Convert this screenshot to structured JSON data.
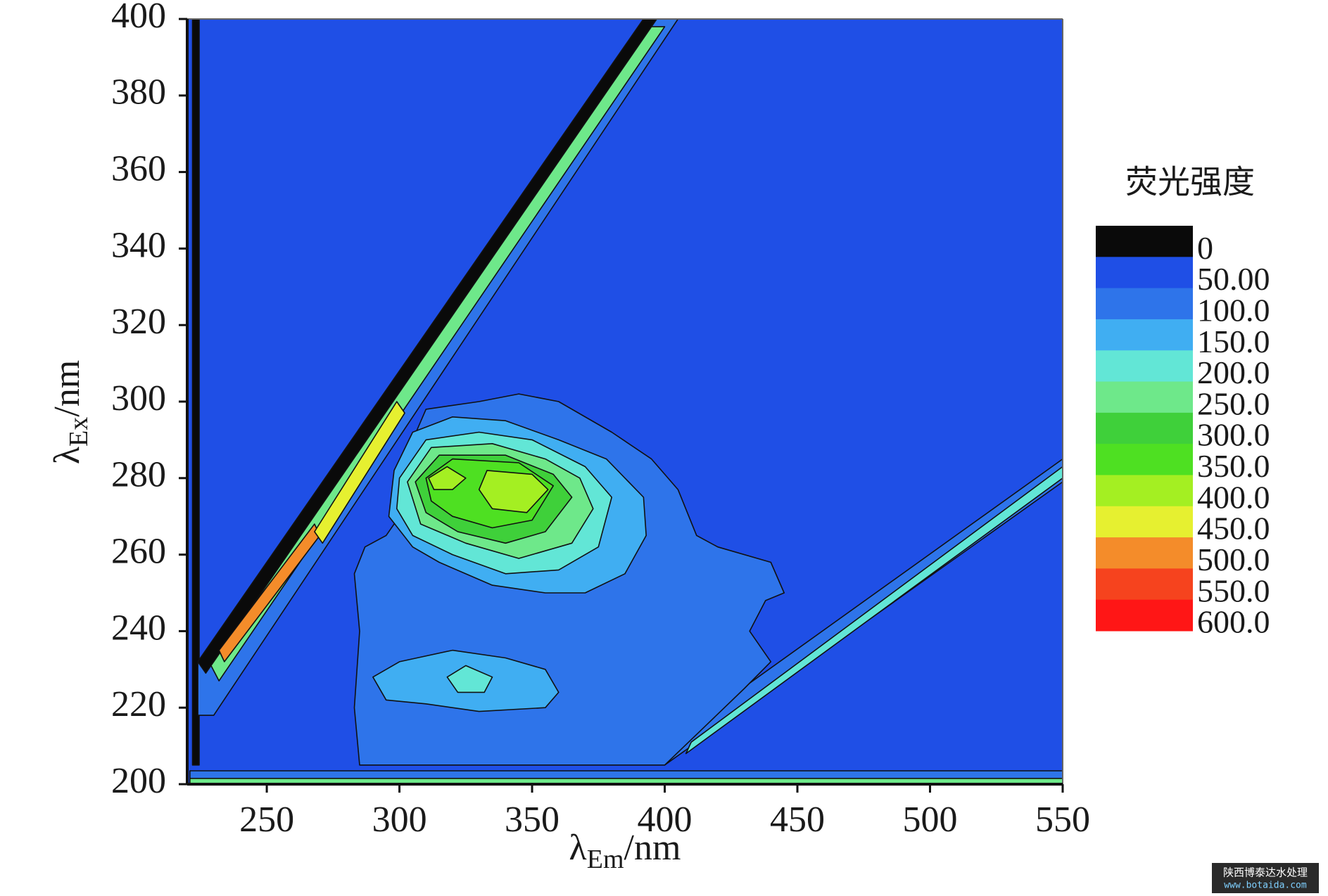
{
  "chart_data": {
    "type": "contour",
    "xlabel": [
      "λ",
      "Em",
      "/nm"
    ],
    "ylabel": [
      "λ",
      "Ex",
      "/nm"
    ],
    "xlim": [
      220,
      550
    ],
    "ylim": [
      200,
      400
    ],
    "xticks": [
      250,
      300,
      350,
      400,
      450,
      500,
      550
    ],
    "yticks": [
      200,
      220,
      240,
      260,
      280,
      300,
      320,
      340,
      360,
      380,
      400
    ],
    "colorbar": {
      "title": "荧光强度",
      "levels": [
        0,
        {
          "value": 50,
          "label": "50.00"
        },
        {
          "value": 100,
          "label": "100.0"
        },
        {
          "value": 150,
          "label": "150.0"
        },
        {
          "value": 200,
          "label": "200.0"
        },
        {
          "value": 250,
          "label": "250.0"
        },
        {
          "value": 300,
          "label": "300.0"
        },
        {
          "value": 350,
          "label": "350.0"
        },
        {
          "value": 400,
          "label": "400.0"
        },
        {
          "value": 450,
          "label": "450.0"
        },
        {
          "value": 500,
          "label": "500.0"
        },
        {
          "value": 550,
          "label": "550.0"
        },
        {
          "value": 600,
          "label": "600.0"
        }
      ],
      "colors": [
        "#0a0a0a",
        "#1f4fe6",
        "#2e74ea",
        "#40aef2",
        "#62e6d6",
        "#6ee88a",
        "#3fd03a",
        "#4ee022",
        "#a4ef22",
        "#e6f030",
        "#f48c2a",
        "#f6431e",
        "#ff1616"
      ]
    },
    "regions": [
      {
        "level": 50,
        "points": [
          [
            220,
            200
          ],
          [
            220,
            400
          ],
          [
            550,
            400
          ],
          [
            550,
            200
          ]
        ]
      },
      {
        "level": 100,
        "points": [
          [
            221,
            200
          ],
          [
            221,
            203.5
          ],
          [
            550,
            203.5
          ],
          [
            550,
            200
          ]
        ]
      },
      {
        "level": 250,
        "points": [
          [
            221,
            200
          ],
          [
            221,
            201.5
          ],
          [
            550,
            201.5
          ],
          [
            550,
            200
          ]
        ]
      },
      {
        "level": 0,
        "points": [
          [
            222,
            205
          ],
          [
            222,
            400
          ],
          [
            224.5,
            400
          ],
          [
            224.5,
            205
          ]
        ]
      },
      {
        "level": 100,
        "points": [
          [
            224,
            232
          ],
          [
            392,
            400
          ],
          [
            405,
            400
          ],
          [
            230,
            218
          ],
          [
            224,
            218
          ]
        ]
      },
      {
        "level": 0,
        "points": [
          [
            224,
            232
          ],
          [
            392,
            400
          ],
          [
            397,
            400
          ],
          [
            227,
            229
          ]
        ]
      },
      {
        "level": 250,
        "points": [
          [
            229,
            231
          ],
          [
            395,
            398
          ],
          [
            400,
            398
          ],
          [
            232,
            227
          ]
        ]
      },
      {
        "level": 500,
        "points": [
          [
            232,
            235
          ],
          [
            268,
            268
          ],
          [
            270,
            265
          ],
          [
            234,
            232
          ]
        ]
      },
      {
        "level": 450,
        "points": [
          [
            268,
            266
          ],
          [
            299,
            300
          ],
          [
            302,
            297
          ],
          [
            271,
            263
          ]
        ]
      },
      {
        "level": 100,
        "points": [
          [
            400,
            205
          ],
          [
            550,
            279
          ],
          [
            550,
            285
          ],
          [
            403,
            212
          ]
        ]
      },
      {
        "level": 200,
        "points": [
          [
            408,
            208
          ],
          [
            550,
            280
          ],
          [
            550,
            283
          ],
          [
            410,
            211
          ]
        ]
      },
      {
        "level": 100,
        "points": [
          [
            300,
            282
          ],
          [
            310,
            298
          ],
          [
            330,
            300
          ],
          [
            345,
            302
          ],
          [
            360,
            300
          ],
          [
            380,
            292
          ],
          [
            395,
            285
          ],
          [
            405,
            277
          ],
          [
            412,
            265
          ],
          [
            420,
            262
          ],
          [
            440,
            258
          ],
          [
            445,
            250
          ],
          [
            438,
            248
          ],
          [
            432,
            240
          ],
          [
            440,
            232
          ],
          [
            430,
            225
          ],
          [
            415,
            215
          ],
          [
            400,
            205
          ],
          [
            285,
            205
          ],
          [
            283,
            220
          ],
          [
            285,
            240
          ],
          [
            283,
            255
          ],
          [
            287,
            262
          ],
          [
            295,
            265
          ],
          [
            300,
            270
          ],
          [
            298,
            278
          ]
        ]
      },
      {
        "level": 150,
        "points": [
          [
            298,
            282
          ],
          [
            305,
            292
          ],
          [
            320,
            296
          ],
          [
            340,
            295
          ],
          [
            360,
            290
          ],
          [
            378,
            285
          ],
          [
            392,
            275
          ],
          [
            393,
            265
          ],
          [
            385,
            255
          ],
          [
            370,
            250
          ],
          [
            355,
            250
          ],
          [
            335,
            252
          ],
          [
            315,
            258
          ],
          [
            305,
            262
          ],
          [
            296,
            270
          ]
        ]
      },
      {
        "level": 200,
        "points": [
          [
            300,
            280
          ],
          [
            310,
            290
          ],
          [
            330,
            292
          ],
          [
            350,
            290
          ],
          [
            370,
            283
          ],
          [
            380,
            275
          ],
          [
            375,
            262
          ],
          [
            360,
            256
          ],
          [
            340,
            255
          ],
          [
            320,
            260
          ],
          [
            305,
            265
          ],
          [
            299,
            272
          ]
        ]
      },
      {
        "level": 250,
        "points": [
          [
            303,
            279
          ],
          [
            312,
            288
          ],
          [
            335,
            289
          ],
          [
            355,
            285
          ],
          [
            368,
            280
          ],
          [
            373,
            272
          ],
          [
            365,
            263
          ],
          [
            345,
            259
          ],
          [
            325,
            263
          ],
          [
            308,
            268
          ]
        ]
      },
      {
        "level": 300,
        "points": [
          [
            306,
            279
          ],
          [
            315,
            286
          ],
          [
            340,
            286
          ],
          [
            358,
            281
          ],
          [
            365,
            275
          ],
          [
            355,
            266
          ],
          [
            340,
            263
          ],
          [
            322,
            266
          ],
          [
            310,
            271
          ]
        ]
      },
      {
        "level": 350,
        "points": [
          [
            310,
            280
          ],
          [
            320,
            285
          ],
          [
            345,
            284
          ],
          [
            358,
            278
          ],
          [
            350,
            269
          ],
          [
            335,
            267
          ],
          [
            320,
            270
          ],
          [
            312,
            274
          ]
        ]
      },
      {
        "level": 400,
        "points": [
          [
            311,
            280
          ],
          [
            318,
            283
          ],
          [
            325,
            280
          ],
          [
            320,
            277
          ],
          [
            313,
            277
          ]
        ]
      },
      {
        "level": 400,
        "points": [
          [
            333,
            282
          ],
          [
            350,
            281
          ],
          [
            356,
            277
          ],
          [
            348,
            271
          ],
          [
            335,
            272
          ],
          [
            330,
            277
          ]
        ]
      },
      {
        "level": 150,
        "points": [
          [
            290,
            228
          ],
          [
            300,
            232
          ],
          [
            320,
            235
          ],
          [
            340,
            233
          ],
          [
            355,
            230
          ],
          [
            360,
            224
          ],
          [
            355,
            220
          ],
          [
            330,
            219
          ],
          [
            310,
            221
          ],
          [
            295,
            222
          ]
        ]
      },
      {
        "level": 200,
        "points": [
          [
            318,
            228
          ],
          [
            325,
            231
          ],
          [
            335,
            228
          ],
          [
            332,
            224
          ],
          [
            322,
            224
          ]
        ]
      }
    ],
    "watermark": [
      "陕西博泰达水处理",
      "www.botaida.com"
    ]
  }
}
